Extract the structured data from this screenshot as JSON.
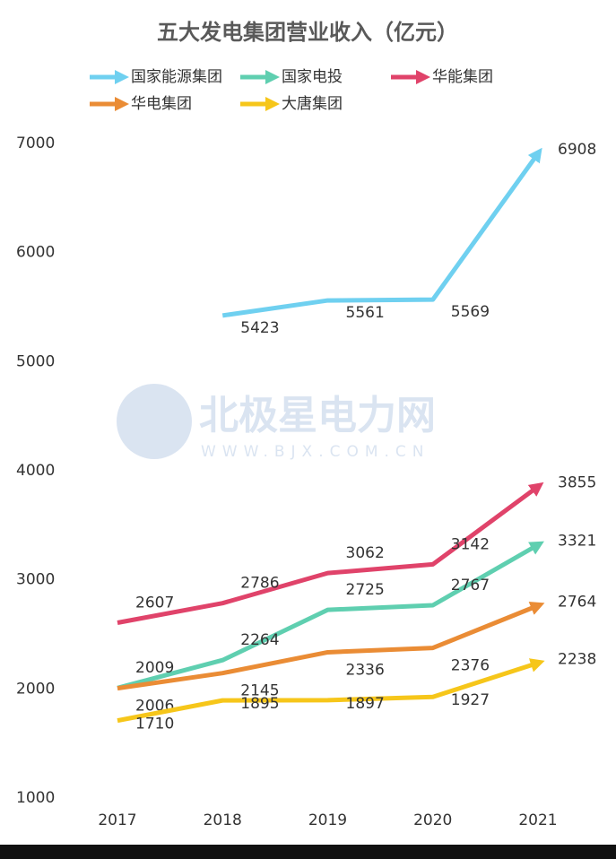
{
  "chart_data": {
    "type": "line",
    "title": "五大发电集团营业收入（亿元）",
    "categories": [
      "2017",
      "2018",
      "2019",
      "2020",
      "2021"
    ],
    "series": [
      {
        "name": "国家能源集团",
        "color": "#6fd0f0",
        "values": [
          null,
          5423,
          5561,
          5569,
          6908
        ]
      },
      {
        "name": "国家电投",
        "color": "#5fcfb0",
        "values": [
          2009,
          2264,
          2725,
          2767,
          3321
        ]
      },
      {
        "name": "华能集团",
        "color": "#e0436a",
        "values": [
          2607,
          2786,
          3062,
          3142,
          3855
        ]
      },
      {
        "name": "华电集团",
        "color": "#ea8c35",
        "values": [
          2006,
          2145,
          2336,
          2376,
          2764
        ]
      },
      {
        "name": "大唐集团",
        "color": "#f6c61a",
        "values": [
          1710,
          1895,
          1897,
          1927,
          2238
        ]
      }
    ],
    "ylim": [
      1000,
      7000
    ],
    "yticks": [
      1000,
      2000,
      3000,
      4000,
      5000,
      6000,
      7000
    ],
    "grid": false,
    "watermark": {
      "title": "北极星电力网",
      "url": "WWW.BJX.COM.CN"
    }
  }
}
